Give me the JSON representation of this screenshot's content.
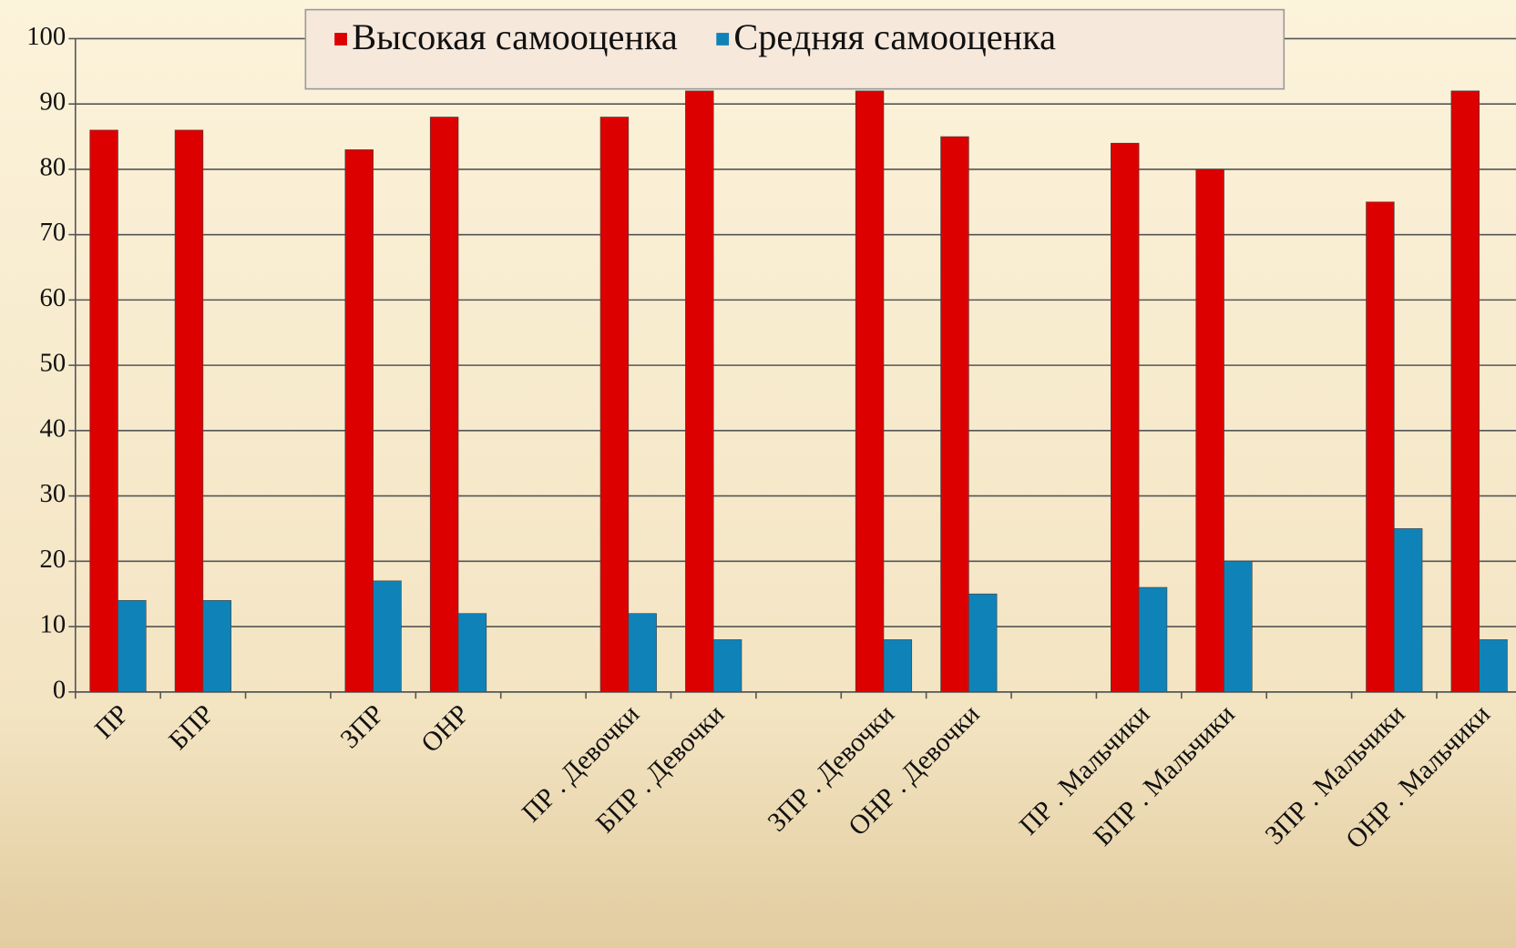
{
  "chart_data": {
    "type": "bar",
    "categories": [
      "ПР",
      "БПР",
      null,
      "ЗПР",
      "ОНР",
      null,
      "ПР . Девочки",
      "БПР . Девочки",
      null,
      "ЗПР . Девочки",
      "ОНР . Девочки",
      null,
      "ПР . Мальчики",
      "БПР . Мальчики",
      null,
      "ЗПР . Мальчики",
      "ОНР . Мальчики"
    ],
    "series": [
      {
        "name": "Высокая самооценка",
        "color": "#dd0000",
        "values": [
          86,
          86,
          null,
          83,
          88,
          null,
          88,
          92,
          null,
          92,
          85,
          null,
          84,
          80,
          null,
          75,
          92
        ]
      },
      {
        "name": "Средняя самооценка",
        "color": "#0f83b8",
        "values": [
          14,
          14,
          null,
          17,
          12,
          null,
          12,
          8,
          null,
          8,
          15,
          null,
          16,
          20,
          null,
          25,
          8
        ]
      }
    ],
    "ylim": [
      0,
      100
    ],
    "yticks": [
      0,
      10,
      20,
      30,
      40,
      50,
      60,
      70,
      80,
      90,
      100
    ],
    "grid": true,
    "legend": "top"
  }
}
